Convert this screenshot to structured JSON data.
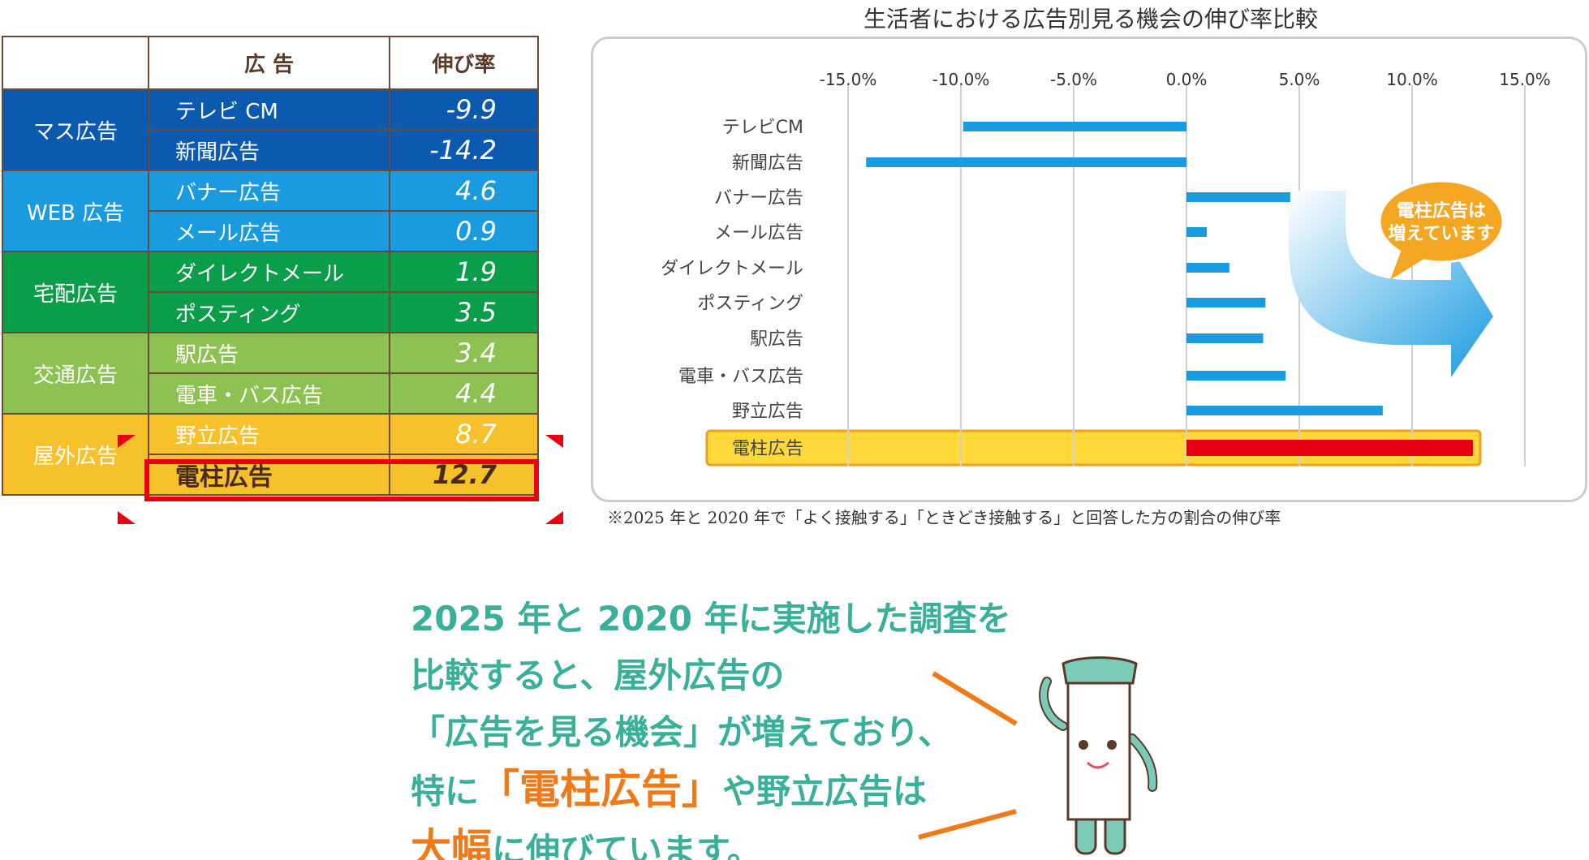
{
  "table": {
    "header_col1": "",
    "header_ad": "広 告",
    "header_rate": "伸び率",
    "groups": [
      {
        "label": "マス広告",
        "color": "#0b5ab0",
        "rows": [
          {
            "name": "テレビ CM",
            "value": "-9.9"
          },
          {
            "name": "新聞広告",
            "value": "-14.2"
          }
        ]
      },
      {
        "label": "WEB 広告",
        "color": "#1a9be0",
        "rows": [
          {
            "name": "バナー広告",
            "value": "4.6"
          },
          {
            "name": "メール広告",
            "value": "0.9"
          }
        ]
      },
      {
        "label": "宅配広告",
        "color": "#0b9e4a",
        "rows": [
          {
            "name": "ダイレクトメール",
            "value": "1.9"
          },
          {
            "name": "ポスティング",
            "value": "3.5"
          }
        ]
      },
      {
        "label": "交通広告",
        "color": "#8dc152",
        "rows": [
          {
            "name": "駅広告",
            "value": "3.4"
          },
          {
            "name": "電車・バス広告",
            "value": "4.4"
          }
        ]
      },
      {
        "label": "屋外広告",
        "color": "#f7c12c",
        "rows": [
          {
            "name": "野立広告",
            "value": "8.7"
          },
          {
            "name": "電柱広告",
            "value": "12.7"
          }
        ]
      }
    ]
  },
  "chart_data": {
    "type": "bar",
    "orientation": "horizontal",
    "title": "生活者における広告別見る機会の伸び率比較",
    "categories": [
      "テレビCM",
      "新聞広告",
      "バナー広告",
      "メール広告",
      "ダイレクトメール",
      "ポスティング",
      "駅広告",
      "電車・バス広告",
      "野立広告",
      "電柱広告"
    ],
    "values": [
      -9.9,
      -14.2,
      4.6,
      0.9,
      1.9,
      3.5,
      3.4,
      4.4,
      8.7,
      12.7
    ],
    "xlim": [
      -15,
      15
    ],
    "xticks": [
      "-15.0%",
      "-10.0%",
      "-5.0%",
      "0.0%",
      "5.0%",
      "10.0%",
      "15.0%"
    ],
    "xtick_values": [
      -15,
      -10,
      -5,
      0,
      5,
      10,
      15
    ],
    "grid": true,
    "bar_color": "#1a9be0",
    "highlight_category": "電柱広告",
    "highlight_color": "#e60012",
    "highlight_band_color": "#ffd93a",
    "callout": "電柱広告は\n増えています",
    "xlabel": "",
    "ylabel": ""
  },
  "footnote": "※2025 年と 2020 年で「よく接触する」「ときどき接触する」と回答した方の割合の伸び率",
  "message": {
    "line1": "2025 年と 2020 年に実施した調査を",
    "line2": "比較すると、屋外広告の",
    "line3": "「広告を見る機会」が増えており、",
    "line4_pre": "特に",
    "line4_em": "「電柱広告」",
    "line4_post": "や野立広告は",
    "line5_em": "大幅",
    "line5_post": "に伸びています。"
  },
  "colors": {
    "teal": "#3ab09a",
    "orange": "#ee7a1a",
    "red": "#e60012"
  }
}
